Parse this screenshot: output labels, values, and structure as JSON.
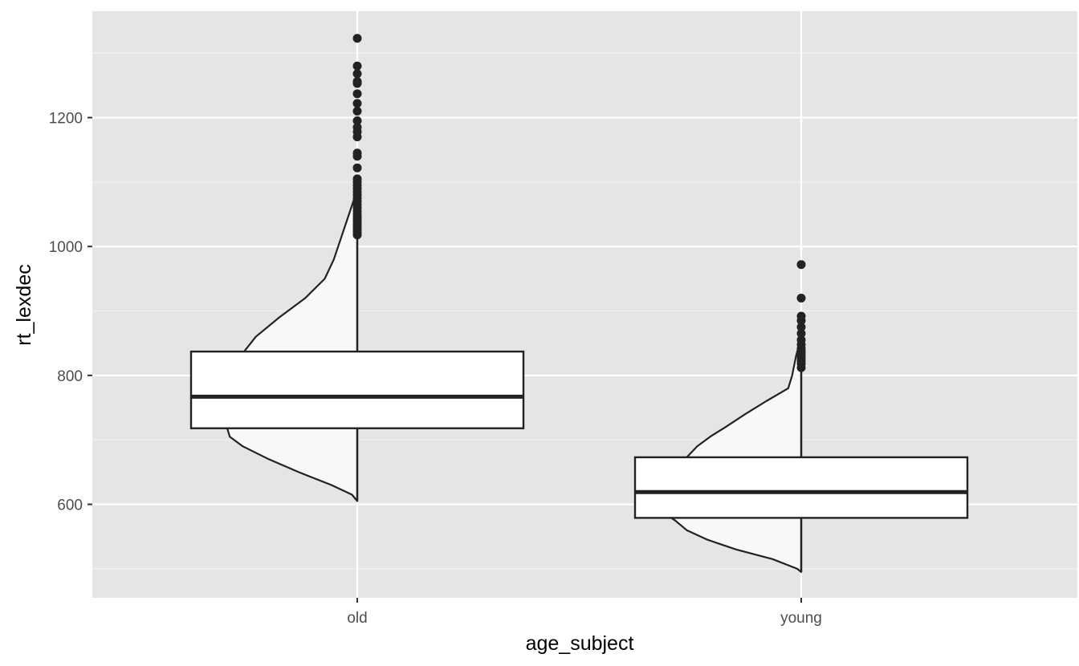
{
  "chart_data": {
    "type": "box",
    "xlabel": "age_subject",
    "ylabel": "rt_lexdec",
    "categories": [
      "old",
      "young"
    ],
    "ylim": [
      455,
      1365
    ],
    "y_ticks": [
      600,
      800,
      1000,
      1200
    ],
    "grid": true,
    "groups": [
      {
        "name": "old",
        "box": {
          "lower_whisker": 605,
          "q1": 718,
          "median": 767,
          "q3": 837,
          "upper_whisker": 1015
        },
        "outliers": [
          1018,
          1022,
          1026,
          1030,
          1034,
          1038,
          1042,
          1046,
          1050,
          1055,
          1060,
          1065,
          1070,
          1075,
          1080,
          1085,
          1090,
          1095,
          1100,
          1105,
          1122,
          1140,
          1145,
          1170,
          1178,
          1185,
          1195,
          1210,
          1222,
          1237,
          1253,
          1256,
          1268,
          1280,
          1323
        ],
        "density": [
          [
            605,
            0.0
          ],
          [
            615,
            0.04
          ],
          [
            630,
            0.2
          ],
          [
            650,
            0.45
          ],
          [
            670,
            0.68
          ],
          [
            690,
            0.88
          ],
          [
            705,
            0.98
          ],
          [
            718,
            1.0
          ],
          [
            740,
            0.98
          ],
          [
            767,
            0.95
          ],
          [
            800,
            0.92
          ],
          [
            837,
            0.87
          ],
          [
            860,
            0.78
          ],
          [
            890,
            0.6
          ],
          [
            920,
            0.4
          ],
          [
            950,
            0.25
          ],
          [
            980,
            0.18
          ],
          [
            1010,
            0.13
          ],
          [
            1040,
            0.08
          ],
          [
            1070,
            0.03
          ],
          [
            1090,
            0.0
          ]
        ]
      },
      {
        "name": "young",
        "box": {
          "lower_whisker": 495,
          "q1": 579,
          "median": 619,
          "q3": 673,
          "upper_whisker": 805
        },
        "outliers": [
          812,
          818,
          822,
          826,
          830,
          834,
          838,
          842,
          848,
          855,
          865,
          875,
          885,
          892,
          920,
          972
        ],
        "density": [
          [
            495,
            0.0
          ],
          [
            500,
            0.03
          ],
          [
            515,
            0.22
          ],
          [
            530,
            0.5
          ],
          [
            545,
            0.72
          ],
          [
            560,
            0.88
          ],
          [
            575,
            0.97
          ],
          [
            579,
            1.0
          ],
          [
            600,
            0.98
          ],
          [
            619,
            0.96
          ],
          [
            650,
            0.93
          ],
          [
            673,
            0.88
          ],
          [
            690,
            0.8
          ],
          [
            705,
            0.7
          ],
          [
            720,
            0.58
          ],
          [
            740,
            0.43
          ],
          [
            760,
            0.27
          ],
          [
            780,
            0.1
          ],
          [
            800,
            0.07
          ],
          [
            830,
            0.04
          ],
          [
            860,
            0.0
          ]
        ]
      }
    ]
  }
}
